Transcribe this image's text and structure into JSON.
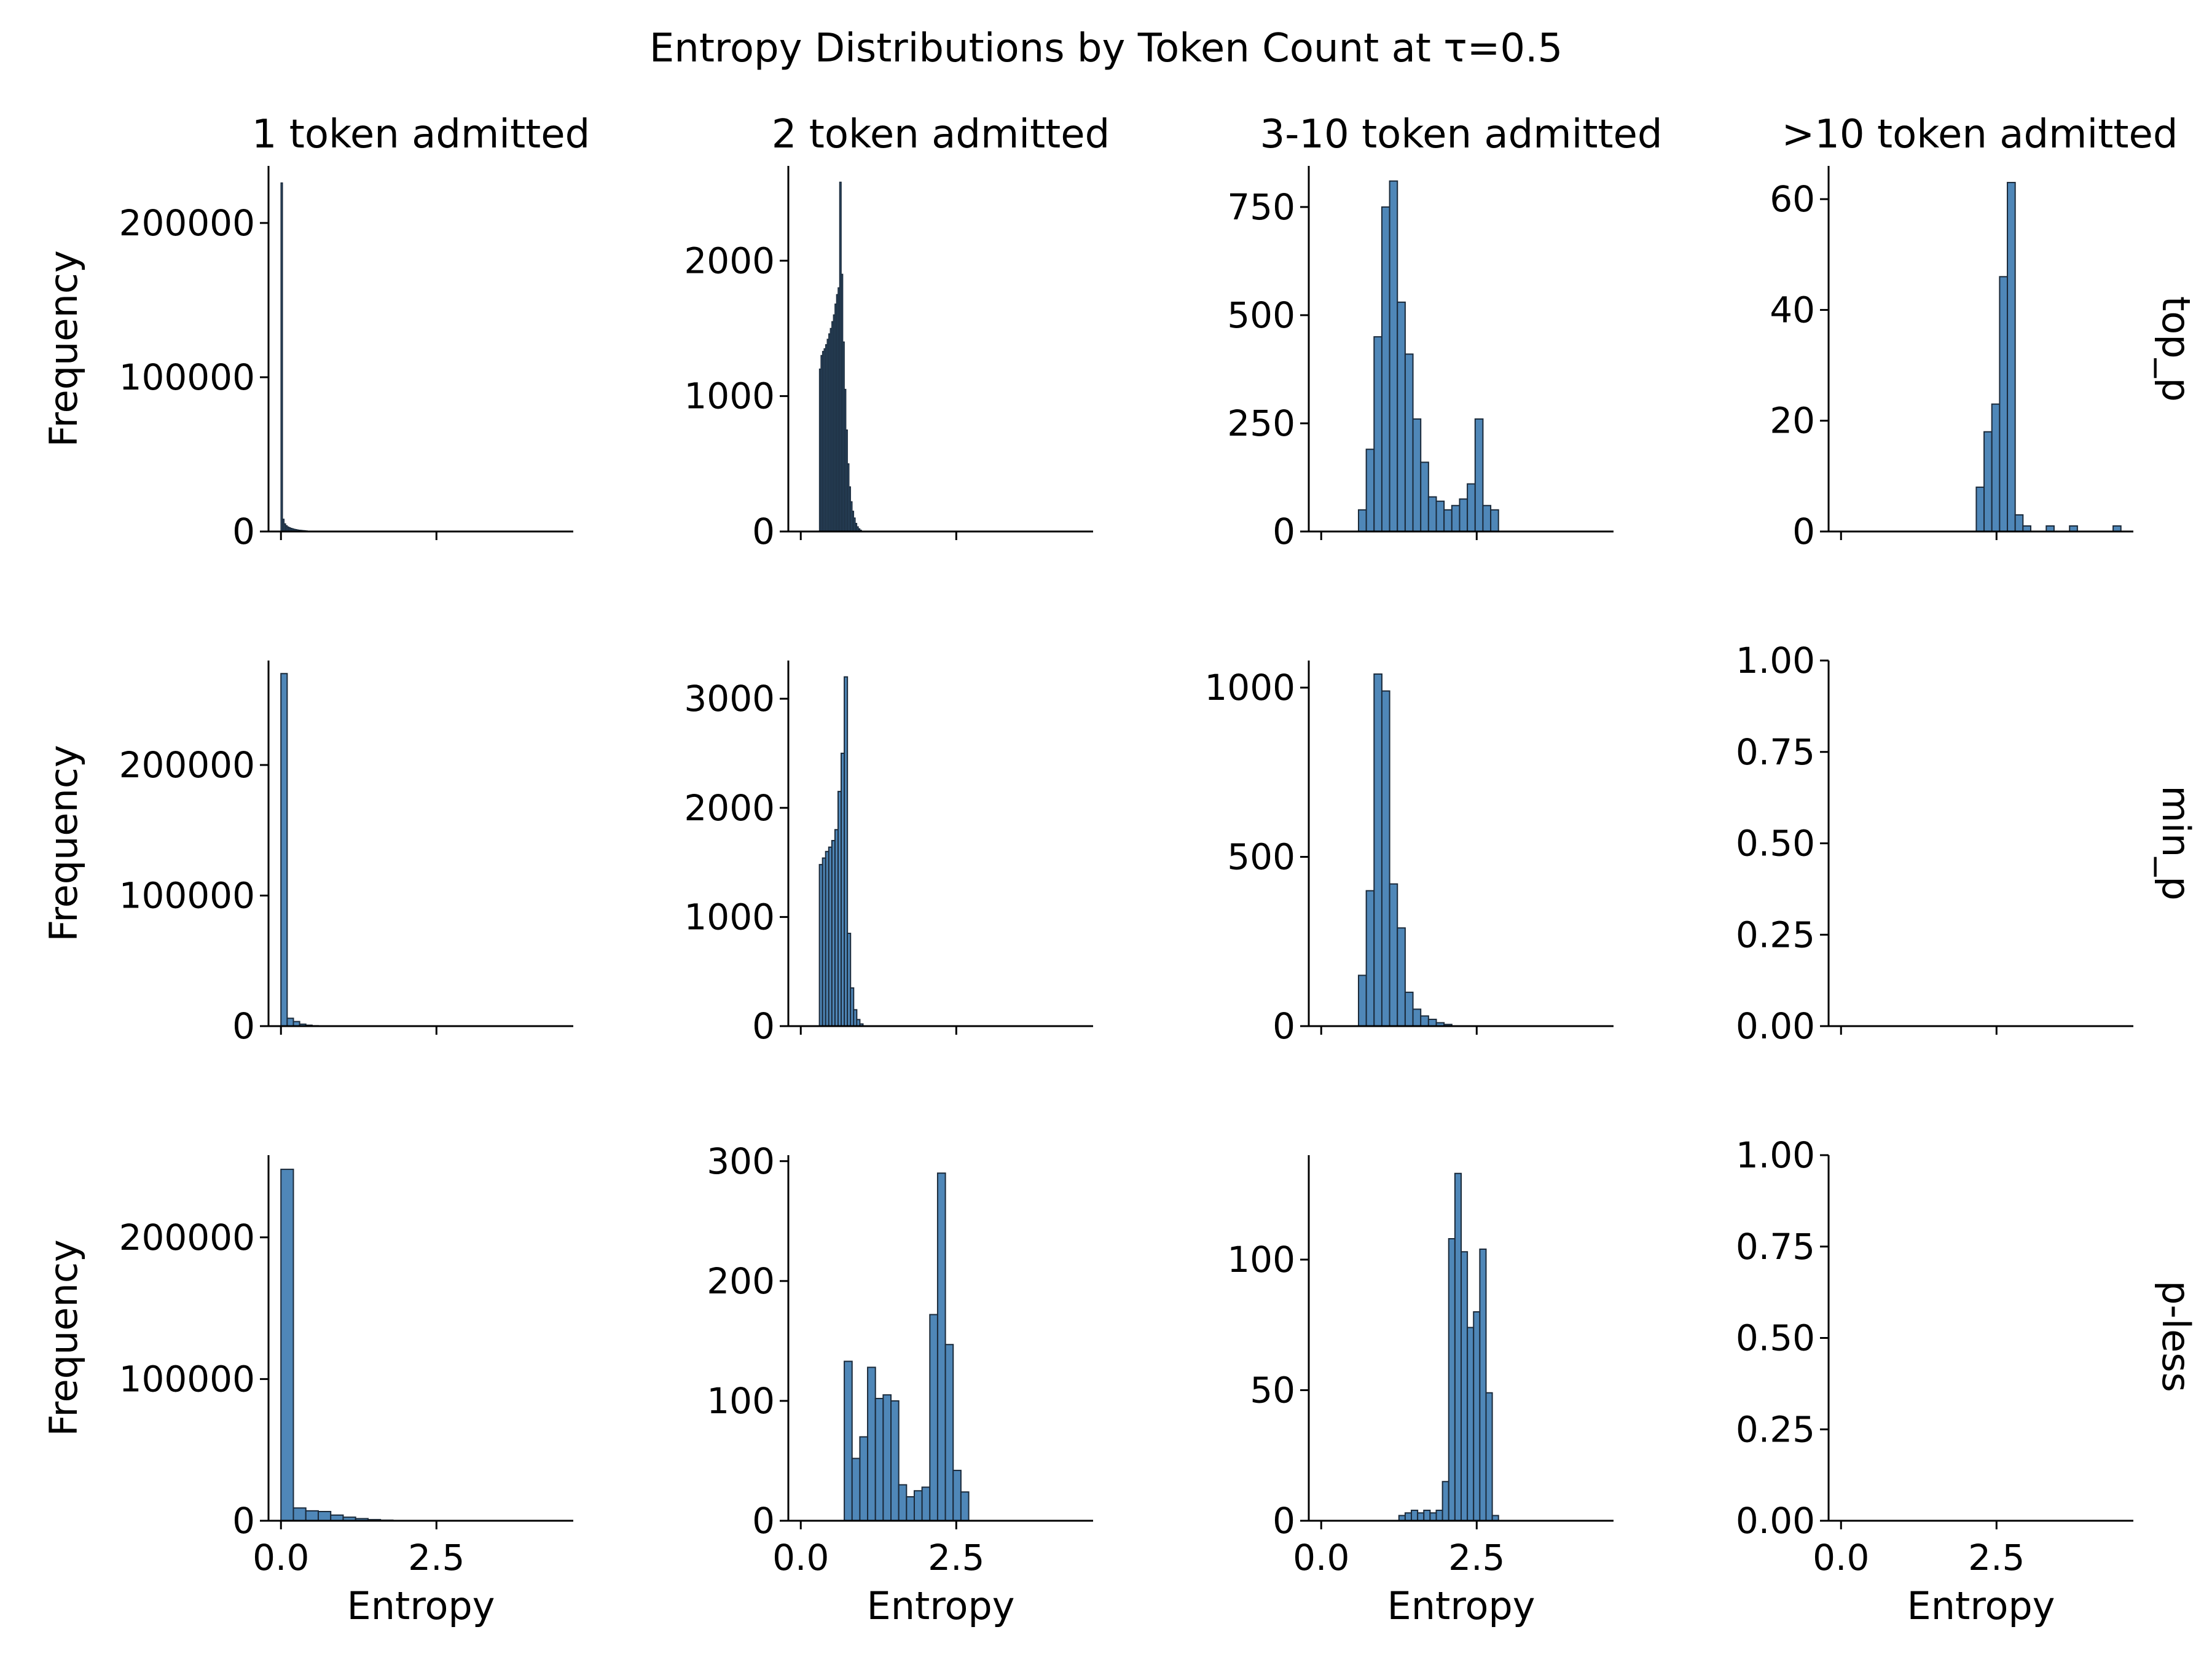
{
  "title": "Entropy Distributions by Token Count at τ=0.5",
  "columns": [
    "1 token admitted",
    "2 token admitted",
    "3-10 token admitted",
    ">10 token admitted"
  ],
  "rows": [
    "top_p",
    "min_p",
    "p-less"
  ],
  "colors": {
    "bar_fill": "#4f87b8",
    "bar_fill_dense": "#2f4f6c",
    "bar_edge": "#1b2a3a"
  },
  "chart_data": {
    "type": "bar",
    "layout": "facet-grid",
    "xlabel": "Entropy",
    "ylabel": "Frequency",
    "xlim": [
      -0.2,
      4.7
    ],
    "xticks": [
      0.0,
      2.5
    ],
    "xtick_labels": [
      "0.0",
      "2.5"
    ],
    "panels": [
      {
        "row": "top_p",
        "col": "1 token admitted",
        "dense": true,
        "bin_width": 0.025,
        "ylim": [
          0,
          237000
        ],
        "yticks": [
          0,
          100000,
          200000
        ],
        "bins": [
          [
            0.0,
            226000
          ],
          [
            0.025,
            8000
          ],
          [
            0.05,
            5000
          ],
          [
            0.075,
            3800
          ],
          [
            0.1,
            3000
          ],
          [
            0.125,
            2500
          ],
          [
            0.15,
            2100
          ],
          [
            0.175,
            1800
          ],
          [
            0.2,
            1500
          ],
          [
            0.225,
            1300
          ],
          [
            0.25,
            1100
          ],
          [
            0.275,
            900
          ],
          [
            0.3,
            800
          ],
          [
            0.325,
            700
          ],
          [
            0.35,
            600
          ],
          [
            0.375,
            500
          ],
          [
            0.4,
            400
          ],
          [
            0.45,
            300
          ],
          [
            0.5,
            200
          ],
          [
            0.55,
            150
          ],
          [
            0.6,
            100
          ]
        ]
      },
      {
        "row": "top_p",
        "col": "2 token admitted",
        "dense": true,
        "bin_width": 0.025,
        "ylim": [
          0,
          2700
        ],
        "yticks": [
          0,
          1000,
          2000
        ],
        "bins": [
          [
            0.3,
            1200
          ],
          [
            0.325,
            1300
          ],
          [
            0.35,
            1330
          ],
          [
            0.375,
            1350
          ],
          [
            0.4,
            1380
          ],
          [
            0.425,
            1420
          ],
          [
            0.45,
            1460
          ],
          [
            0.475,
            1500
          ],
          [
            0.5,
            1550
          ],
          [
            0.525,
            1600
          ],
          [
            0.55,
            1680
          ],
          [
            0.575,
            1750
          ],
          [
            0.6,
            1800
          ],
          [
            0.625,
            2580
          ],
          [
            0.65,
            1900
          ],
          [
            0.675,
            1400
          ],
          [
            0.7,
            1050
          ],
          [
            0.725,
            750
          ],
          [
            0.75,
            500
          ],
          [
            0.775,
            330
          ],
          [
            0.8,
            220
          ],
          [
            0.825,
            150
          ],
          [
            0.85,
            100
          ],
          [
            0.875,
            60
          ],
          [
            0.9,
            35
          ],
          [
            0.925,
            20
          ],
          [
            0.95,
            10
          ]
        ]
      },
      {
        "row": "top_p",
        "col": "3-10 token admitted",
        "dense": false,
        "bin_width": 0.125,
        "ylim": [
          0,
          845
        ],
        "yticks": [
          0,
          250,
          500,
          750
        ],
        "bins": [
          [
            0.6,
            50
          ],
          [
            0.725,
            190
          ],
          [
            0.85,
            450
          ],
          [
            0.975,
            750
          ],
          [
            1.1,
            810
          ],
          [
            1.225,
            530
          ],
          [
            1.35,
            410
          ],
          [
            1.475,
            260
          ],
          [
            1.6,
            160
          ],
          [
            1.725,
            80
          ],
          [
            1.85,
            70
          ],
          [
            1.975,
            50
          ],
          [
            2.1,
            60
          ],
          [
            2.225,
            75
          ],
          [
            2.35,
            110
          ],
          [
            2.475,
            260
          ],
          [
            2.6,
            60
          ],
          [
            2.725,
            50
          ]
        ]
      },
      {
        "row": "top_p",
        "col": ">10 token admitted",
        "dense": false,
        "bin_width": 0.125,
        "ylim": [
          0,
          66
        ],
        "yticks": [
          0,
          20,
          40,
          60
        ],
        "bins": [
          [
            2.175,
            8
          ],
          [
            2.3,
            18
          ],
          [
            2.425,
            23
          ],
          [
            2.55,
            46
          ],
          [
            2.675,
            63
          ],
          [
            2.8,
            3
          ],
          [
            2.925,
            1
          ],
          [
            3.3,
            1
          ],
          [
            3.675,
            1
          ],
          [
            4.375,
            1
          ]
        ]
      },
      {
        "row": "min_p",
        "col": "1 token admitted",
        "dense": false,
        "bin_width": 0.1,
        "ylim": [
          0,
          280000
        ],
        "yticks": [
          0,
          100000,
          200000
        ],
        "bins": [
          [
            0.0,
            270000
          ],
          [
            0.1,
            6000
          ],
          [
            0.2,
            3500
          ],
          [
            0.3,
            1500
          ],
          [
            0.4,
            700
          ],
          [
            0.5,
            300
          ]
        ]
      },
      {
        "row": "min_p",
        "col": "2 token admitted",
        "dense": false,
        "bin_width": 0.05,
        "ylim": [
          0,
          3350
        ],
        "yticks": [
          0,
          1000,
          2000,
          3000
        ],
        "bins": [
          [
            0.3,
            1480
          ],
          [
            0.35,
            1540
          ],
          [
            0.4,
            1600
          ],
          [
            0.45,
            1640
          ],
          [
            0.5,
            1700
          ],
          [
            0.55,
            1800
          ],
          [
            0.6,
            2150
          ],
          [
            0.65,
            2500
          ],
          [
            0.7,
            3200
          ],
          [
            0.75,
            850
          ],
          [
            0.8,
            350
          ],
          [
            0.85,
            150
          ],
          [
            0.9,
            60
          ],
          [
            0.95,
            20
          ]
        ]
      },
      {
        "row": "min_p",
        "col": "3-10 token admitted",
        "dense": false,
        "bin_width": 0.125,
        "ylim": [
          0,
          1080
        ],
        "yticks": [
          0,
          500,
          1000
        ],
        "bins": [
          [
            0.6,
            150
          ],
          [
            0.725,
            400
          ],
          [
            0.85,
            1040
          ],
          [
            0.975,
            990
          ],
          [
            1.1,
            420
          ],
          [
            1.225,
            290
          ],
          [
            1.35,
            100
          ],
          [
            1.475,
            50
          ],
          [
            1.6,
            30
          ],
          [
            1.725,
            20
          ],
          [
            1.85,
            10
          ],
          [
            1.975,
            5
          ]
        ]
      },
      {
        "row": "min_p",
        "col": ">10 token admitted",
        "dense": false,
        "bin_width": 0.125,
        "ylim": [
          0,
          1
        ],
        "yticks": [
          0,
          0.25,
          0.5,
          0.75,
          1.0
        ],
        "ytick_labels": [
          "0.00",
          "0.25",
          "0.50",
          "0.75",
          "1.00"
        ],
        "bins": []
      },
      {
        "row": "p-less",
        "col": "1 token admitted",
        "dense": false,
        "bin_width": 0.2,
        "ylim": [
          0,
          258000
        ],
        "yticks": [
          0,
          100000,
          200000
        ],
        "bins": [
          [
            0.0,
            248000
          ],
          [
            0.2,
            9000
          ],
          [
            0.4,
            7000
          ],
          [
            0.6,
            6500
          ],
          [
            0.8,
            4000
          ],
          [
            1.0,
            2500
          ],
          [
            1.2,
            1500
          ],
          [
            1.4,
            800
          ],
          [
            1.6,
            400
          ],
          [
            1.8,
            200
          ],
          [
            2.0,
            100
          ]
        ]
      },
      {
        "row": "p-less",
        "col": "2 token admitted",
        "dense": false,
        "bin_width": 0.125,
        "ylim": [
          0,
          305
        ],
        "yticks": [
          0,
          100,
          200,
          300
        ],
        "bins": [
          [
            0.7,
            133
          ],
          [
            0.825,
            52
          ],
          [
            0.95,
            70
          ],
          [
            1.075,
            128
          ],
          [
            1.2,
            102
          ],
          [
            1.325,
            105
          ],
          [
            1.45,
            100
          ],
          [
            1.575,
            30
          ],
          [
            1.7,
            20
          ],
          [
            1.825,
            25
          ],
          [
            1.95,
            28
          ],
          [
            2.075,
            172
          ],
          [
            2.2,
            290
          ],
          [
            2.325,
            147
          ],
          [
            2.45,
            42
          ],
          [
            2.575,
            24
          ]
        ]
      },
      {
        "row": "p-less",
        "col": "3-10 token admitted",
        "dense": false,
        "bin_width": 0.1,
        "ylim": [
          0,
          140
        ],
        "yticks": [
          0,
          50,
          100
        ],
        "bins": [
          [
            1.25,
            2
          ],
          [
            1.35,
            3
          ],
          [
            1.45,
            4
          ],
          [
            1.55,
            3
          ],
          [
            1.65,
            4
          ],
          [
            1.75,
            3
          ],
          [
            1.85,
            4
          ],
          [
            1.95,
            15
          ],
          [
            2.05,
            108
          ],
          [
            2.15,
            133
          ],
          [
            2.25,
            103
          ],
          [
            2.35,
            74
          ],
          [
            2.45,
            80
          ],
          [
            2.55,
            104
          ],
          [
            2.65,
            49
          ],
          [
            2.75,
            2
          ]
        ]
      },
      {
        "row": "p-less",
        "col": ">10 token admitted",
        "dense": false,
        "bin_width": 0.125,
        "ylim": [
          0,
          1
        ],
        "yticks": [
          0,
          0.25,
          0.5,
          0.75,
          1.0
        ],
        "ytick_labels": [
          "0.00",
          "0.25",
          "0.50",
          "0.75",
          "1.00"
        ],
        "bins": []
      }
    ]
  }
}
